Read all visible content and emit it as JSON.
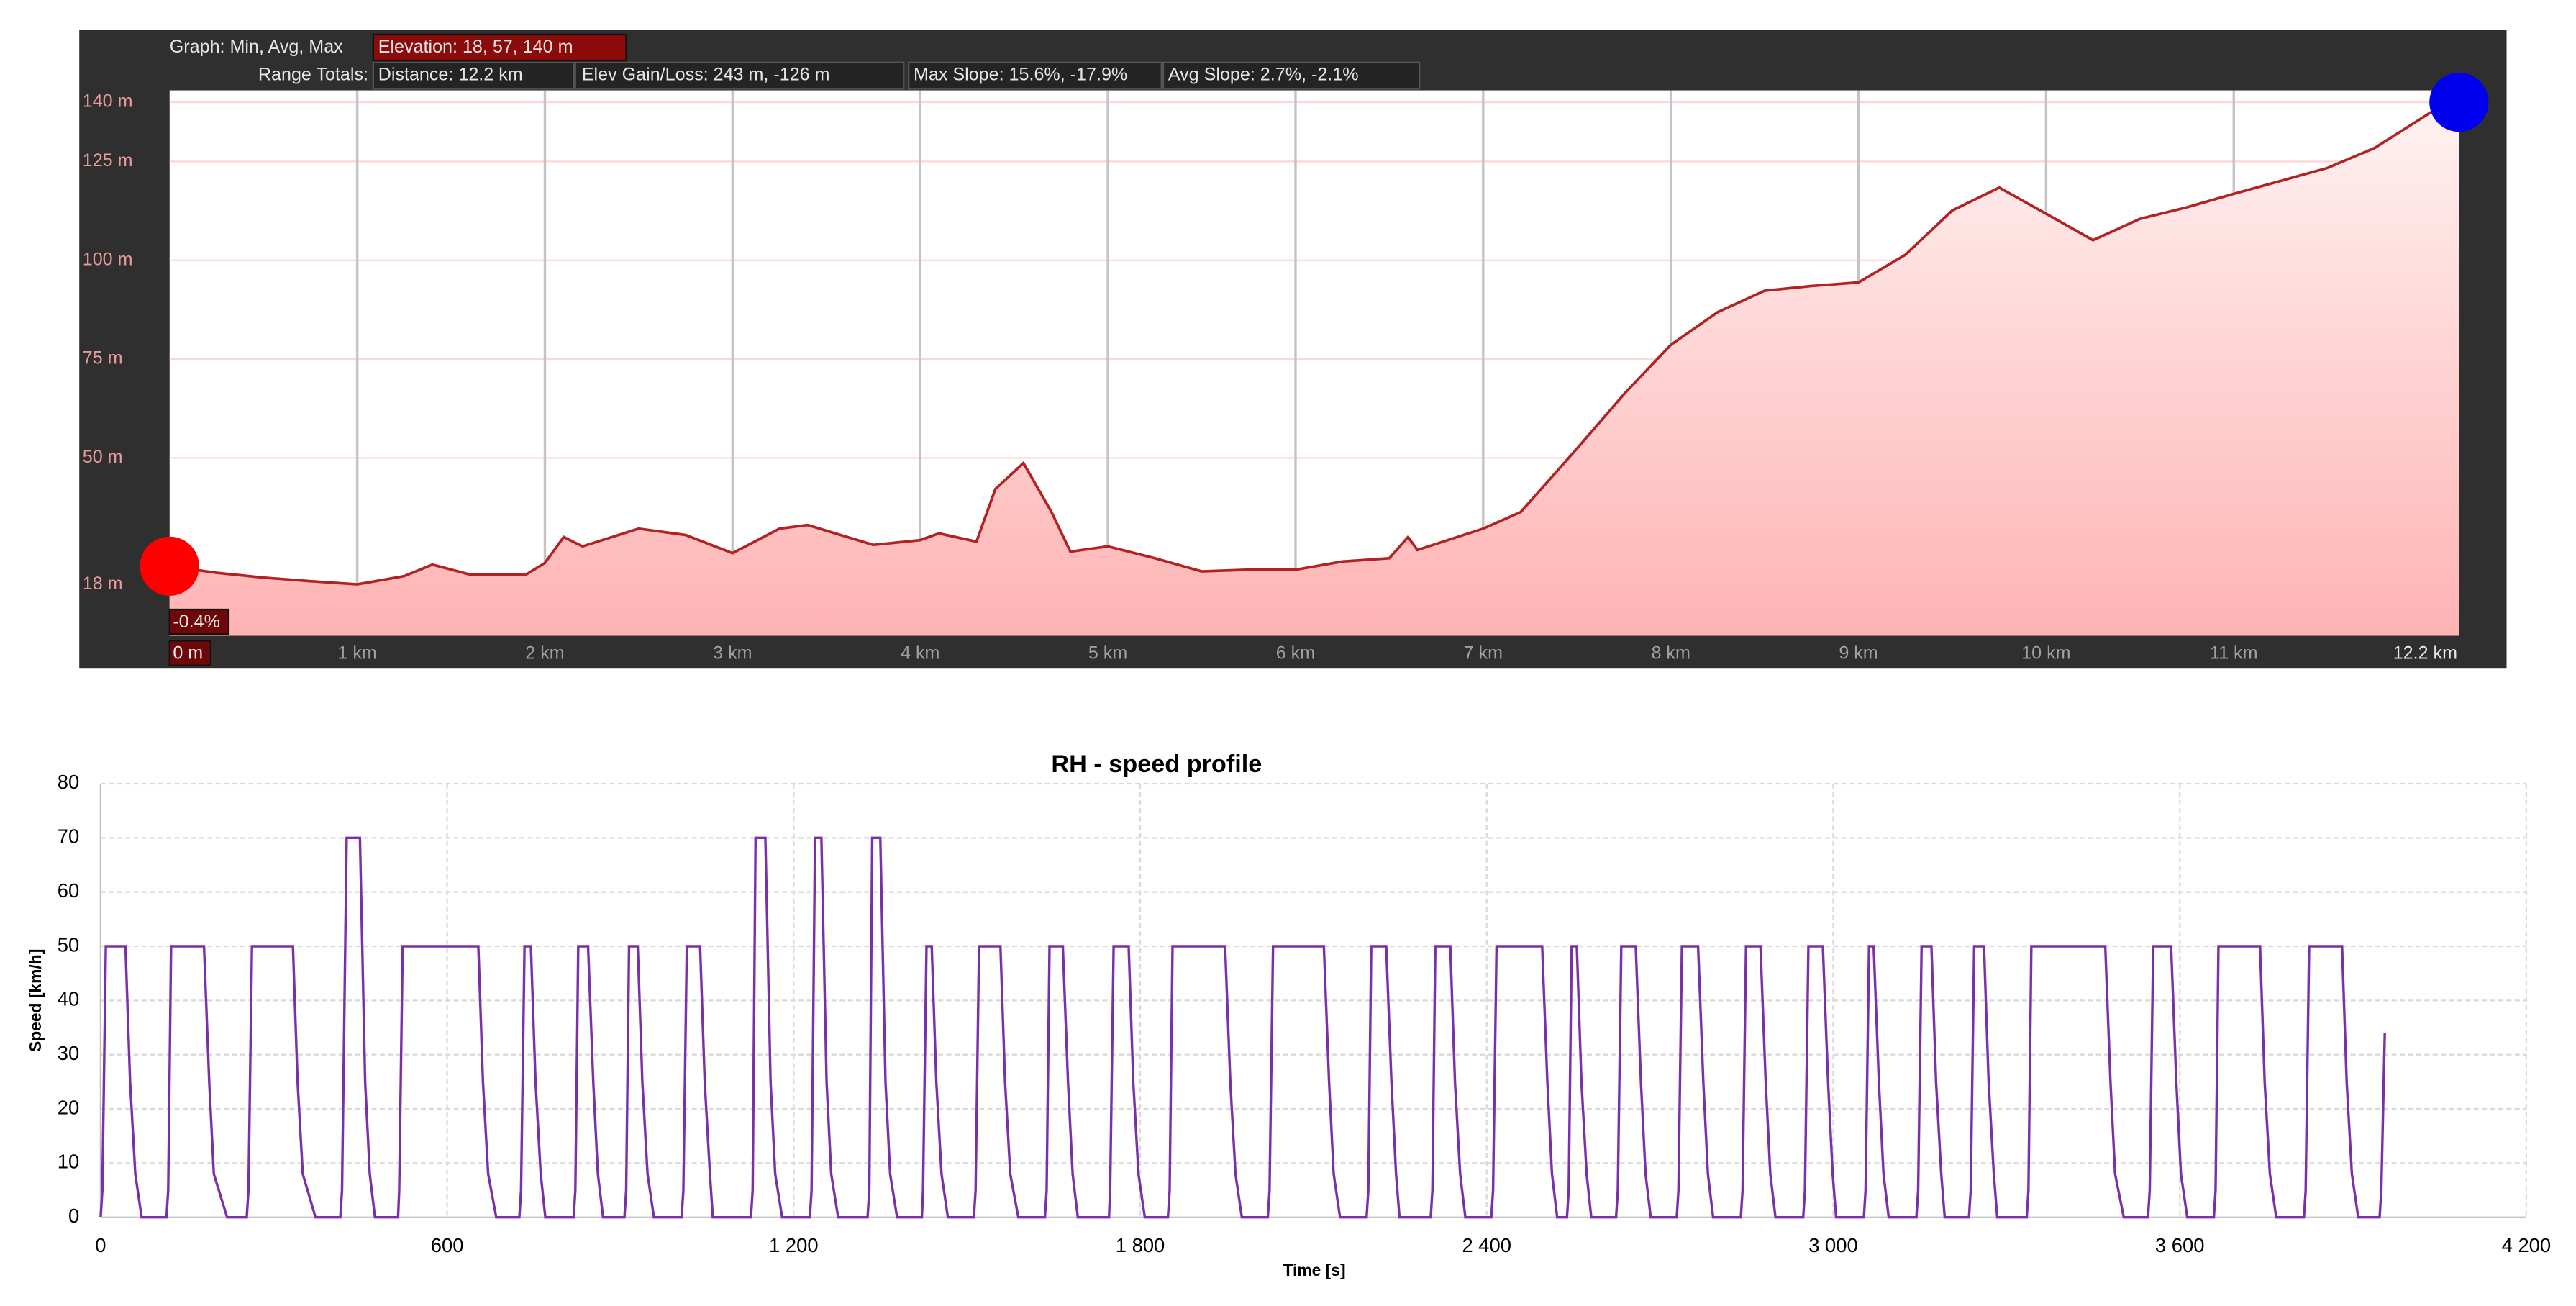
{
  "chart_data": [
    {
      "type": "area",
      "header": {
        "graph": "Graph: Min, Avg, Max",
        "elevation": "Elevation: 18, 57, 140 m",
        "range_totals": "Range Totals:",
        "distance": "Distance: 12.2 km",
        "elev_gain_loss": "Elev Gain/Loss: 243 m, -126 m",
        "max_slope": "Max Slope: 15.6%, -17.9%",
        "avg_slope": "Avg Slope: 2.7%, -2.1%"
      },
      "annotations": [
        "-0.4%"
      ],
      "x": [
        0,
        0.25,
        0.5,
        0.75,
        1,
        1.25,
        1.4,
        1.6,
        1.9,
        2,
        2.1,
        2.2,
        2.5,
        2.75,
        3,
        3.25,
        3.4,
        3.75,
        4,
        4.1,
        4.3,
        4.4,
        4.55,
        4.7,
        4.8,
        5,
        5.25,
        5.5,
        5.75,
        6,
        6.25,
        6.5,
        6.6,
        6.65,
        7,
        7.2,
        7.5,
        7.75,
        8,
        8.25,
        8.5,
        8.75,
        9,
        9.25,
        9.5,
        9.75,
        10,
        10.25,
        10.5,
        10.75,
        11,
        11.25,
        11.5,
        11.75,
        12,
        12.1,
        12.2
      ],
      "series": [
        {
          "name": "Elevation",
          "color": "#b22222",
          "values": [
            22.6,
            20.9,
            19.7,
            18.8,
            18,
            20.1,
            23,
            20.5,
            20.5,
            23.4,
            30,
            27.6,
            32.1,
            30.5,
            25.9,
            32.1,
            33,
            28,
            29.2,
            30.9,
            28.8,
            42.1,
            48.7,
            36.3,
            26.3,
            27.6,
            24.6,
            21.3,
            21.7,
            21.7,
            23.8,
            24.6,
            30,
            26.7,
            32.1,
            36.3,
            52.4,
            66.1,
            78.6,
            86.9,
            92.3,
            93.5,
            94.4,
            101.4,
            112.6,
            118.4,
            111.8,
            105.1,
            110.5,
            113.4,
            116.8,
            120.1,
            123.4,
            128.4,
            135.9,
            139,
            140
          ]
        }
      ],
      "xlim": [
        0,
        12.2
      ],
      "xticks": [
        {
          "value": 0,
          "label": "0 m"
        },
        {
          "value": 1,
          "label": "1 km"
        },
        {
          "value": 2,
          "label": "2 km"
        },
        {
          "value": 3,
          "label": "3 km"
        },
        {
          "value": 4,
          "label": "4 km"
        },
        {
          "value": 5,
          "label": "5 km"
        },
        {
          "value": 6,
          "label": "6 km"
        },
        {
          "value": 7,
          "label": "7 km"
        },
        {
          "value": 8,
          "label": "8 km"
        },
        {
          "value": 9,
          "label": "9 km"
        },
        {
          "value": 10,
          "label": "10 km"
        },
        {
          "value": 11,
          "label": "11 km"
        },
        {
          "value": 12.2,
          "label": "12.2 km"
        }
      ],
      "ylim": [
        5,
        143
      ],
      "yticks": [
        {
          "value": 18,
          "label": "18 m"
        },
        {
          "value": 50,
          "label": "50 m"
        },
        {
          "value": 75,
          "label": "75 m"
        },
        {
          "value": 100,
          "label": "100 m"
        },
        {
          "value": 125,
          "label": "125 m"
        },
        {
          "value": 140,
          "label": "140 m"
        }
      ],
      "grid": true
    },
    {
      "type": "line",
      "title": "RH - speed profile",
      "x_label": "Time [s]",
      "y_label": "Speed [km/h]",
      "x": [
        0,
        3,
        9,
        43,
        51,
        60,
        71,
        114,
        117,
        122,
        179,
        188,
        196,
        219,
        253,
        256,
        262,
        333,
        341,
        350,
        372,
        415,
        418,
        426,
        449,
        458,
        466,
        475,
        515,
        517,
        523,
        654,
        662,
        671,
        685,
        725,
        728,
        734,
        745,
        753,
        762,
        770,
        819,
        822,
        827,
        844,
        853,
        861,
        870,
        907,
        910,
        915,
        930,
        938,
        947,
        958,
        1006,
        1009,
        1015,
        1038,
        1046,
        1055,
        1060,
        1126,
        1129,
        1134,
        1151,
        1160,
        1168,
        1180,
        1228,
        1231,
        1237,
        1248,
        1257,
        1265,
        1277,
        1328,
        1331,
        1336,
        1350,
        1359,
        1367,
        1379,
        1422,
        1424,
        1430,
        1439,
        1447,
        1456,
        1467,
        1512,
        1515,
        1521,
        1558,
        1566,
        1575,
        1589,
        1635,
        1638,
        1643,
        1666,
        1675,
        1683,
        1692,
        1746,
        1748,
        1754,
        1780,
        1788,
        1797,
        1808,
        1848,
        1851,
        1856,
        1947,
        1956,
        1965,
        1976,
        2021,
        2024,
        2030,
        2118,
        2127,
        2135,
        2146,
        2192,
        2195,
        2200,
        2226,
        2235,
        2243,
        2249,
        2303,
        2306,
        2311,
        2337,
        2345,
        2354,
        2363,
        2408,
        2411,
        2417,
        2496,
        2505,
        2513,
        2522,
        2539,
        2542,
        2547,
        2556,
        2564,
        2573,
        2581,
        2624,
        2627,
        2633,
        2658,
        2667,
        2675,
        2684,
        2729,
        2732,
        2738,
        2766,
        2775,
        2783,
        2792,
        2840,
        2843,
        2849,
        2874,
        2883,
        2891,
        2900,
        2948,
        2951,
        2957,
        2982,
        2991,
        2999,
        3005,
        3053,
        3056,
        3062,
        3070,
        3079,
        3087,
        3096,
        3144,
        3147,
        3153,
        3170,
        3178,
        3187,
        3193,
        3235,
        3238,
        3244,
        3261,
        3269,
        3278,
        3284,
        3335,
        3338,
        3343,
        3471,
        3480,
        3488,
        3503,
        3545,
        3548,
        3554,
        3585,
        3594,
        3602,
        3613,
        3659,
        3662,
        3667,
        3739,
        3747,
        3756,
        3767,
        3815,
        3818,
        3824,
        3881,
        3889,
        3898,
        3909,
        3946,
        3949,
        3955
      ],
      "series": [
        {
          "name": "Speed",
          "color": "#7b2fa8",
          "values": [
            0,
            5,
            50,
            50,
            25,
            8,
            0,
            0,
            5,
            50,
            50,
            25,
            8,
            0,
            0,
            5,
            50,
            50,
            25,
            8,
            0,
            0,
            5,
            70,
            70,
            25,
            8,
            0,
            0,
            5,
            50,
            50,
            25,
            8,
            0,
            0,
            5,
            50,
            50,
            25,
            8,
            0,
            0,
            5,
            50,
            50,
            25,
            8,
            0,
            0,
            5,
            50,
            50,
            25,
            8,
            0,
            0,
            5,
            50,
            50,
            25,
            8,
            0,
            0,
            5,
            70,
            70,
            25,
            8,
            0,
            0,
            5,
            70,
            70,
            25,
            8,
            0,
            0,
            5,
            70,
            70,
            25,
            8,
            0,
            0,
            5,
            50,
            50,
            25,
            8,
            0,
            0,
            5,
            50,
            50,
            25,
            8,
            0,
            0,
            5,
            50,
            50,
            25,
            8,
            0,
            0,
            5,
            50,
            50,
            25,
            8,
            0,
            0,
            5,
            50,
            50,
            25,
            8,
            0,
            0,
            5,
            50,
            50,
            25,
            8,
            0,
            0,
            5,
            50,
            50,
            25,
            8,
            0,
            0,
            5,
            50,
            50,
            25,
            8,
            0,
            0,
            5,
            50,
            50,
            25,
            8,
            0,
            0,
            5,
            50,
            50,
            25,
            8,
            0,
            0,
            5,
            50,
            50,
            25,
            8,
            0,
            0,
            5,
            50,
            50,
            25,
            8,
            0,
            0,
            5,
            50,
            50,
            25,
            8,
            0,
            0,
            5,
            50,
            50,
            25,
            8,
            0,
            0,
            5,
            50,
            50,
            25,
            8,
            0,
            0,
            5,
            50,
            50,
            25,
            8,
            0,
            0,
            5,
            50,
            50,
            25,
            8,
            0,
            0,
            5,
            50,
            50,
            25,
            8,
            0,
            0,
            5,
            50,
            50,
            25,
            8,
            0,
            0,
            5,
            50,
            50,
            25,
            8,
            0,
            0,
            5,
            50,
            50,
            25,
            8,
            0,
            0,
            5,
            34
          ]
        }
      ],
      "xlim": [
        0,
        4200
      ],
      "xticks": [
        0,
        600,
        {
          "value": 1200,
          "label": "1 200"
        },
        {
          "value": 1800,
          "label": "1 800"
        },
        {
          "value": 2400,
          "label": "2 400"
        },
        {
          "value": 3000,
          "label": "3 000"
        },
        {
          "value": 3600,
          "label": "3 600"
        },
        {
          "value": 4200,
          "label": "4 200"
        }
      ],
      "ylim": [
        0,
        80
      ],
      "yticks": [
        0,
        10,
        20,
        30,
        40,
        50,
        60,
        70,
        80
      ],
      "grid": true
    }
  ]
}
